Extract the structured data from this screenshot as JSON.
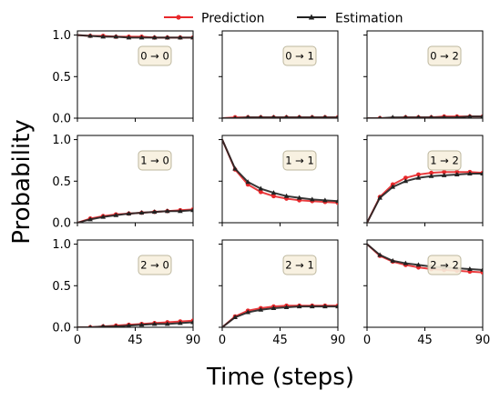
{
  "chart_data": {
    "type": "line",
    "ylabel": "Probability",
    "xlabel": "Time (steps)",
    "xlim": [
      0,
      90
    ],
    "ylim": [
      0,
      1.05
    ],
    "xticks": [
      "0",
      "45",
      "90"
    ],
    "yticks": [
      "0.0",
      "0.5",
      "1.0"
    ],
    "legend": {
      "placement": "top-center",
      "entries": [
        "Prediction",
        "Estimation"
      ]
    },
    "colors": {
      "prediction": "#e8282b",
      "estimation": "#222222"
    },
    "x": [
      0,
      10,
      20,
      30,
      40,
      50,
      60,
      70,
      80,
      90
    ],
    "panels": [
      {
        "label": "0 → 0",
        "prediction": [
          1.0,
          0.99,
          0.99,
          0.98,
          0.98,
          0.98,
          0.97,
          0.97,
          0.97,
          0.97
        ],
        "estimation": [
          1.0,
          0.99,
          0.98,
          0.98,
          0.97,
          0.97,
          0.97,
          0.97,
          0.97,
          0.97
        ]
      },
      {
        "label": "0 → 1",
        "prediction": [
          0.0,
          0.01,
          0.01,
          0.01,
          0.01,
          0.01,
          0.01,
          0.01,
          0.01,
          0.01
        ],
        "estimation": [
          0.0,
          0.0,
          0.01,
          0.01,
          0.01,
          0.01,
          0.01,
          0.01,
          0.01,
          0.01
        ]
      },
      {
        "label": "0 → 2",
        "prediction": [
          0.0,
          0.0,
          0.0,
          0.01,
          0.01,
          0.01,
          0.02,
          0.02,
          0.02,
          0.02
        ],
        "estimation": [
          0.0,
          0.0,
          0.01,
          0.01,
          0.01,
          0.01,
          0.01,
          0.01,
          0.02,
          0.02
        ]
      },
      {
        "label": "1 → 0",
        "prediction": [
          0.0,
          0.05,
          0.08,
          0.1,
          0.11,
          0.12,
          0.13,
          0.14,
          0.15,
          0.16
        ],
        "estimation": [
          0.0,
          0.04,
          0.07,
          0.09,
          0.11,
          0.12,
          0.13,
          0.14,
          0.14,
          0.15
        ]
      },
      {
        "label": "1 → 1",
        "prediction": [
          1.0,
          0.64,
          0.46,
          0.37,
          0.32,
          0.29,
          0.27,
          0.26,
          0.25,
          0.24
        ],
        "estimation": [
          1.0,
          0.65,
          0.49,
          0.41,
          0.36,
          0.32,
          0.3,
          0.28,
          0.27,
          0.26
        ]
      },
      {
        "label": "1 → 2",
        "prediction": [
          0.0,
          0.31,
          0.46,
          0.54,
          0.58,
          0.6,
          0.61,
          0.61,
          0.61,
          0.6
        ],
        "estimation": [
          0.0,
          0.3,
          0.43,
          0.5,
          0.54,
          0.56,
          0.57,
          0.58,
          0.59,
          0.59
        ]
      },
      {
        "label": "2 → 0",
        "prediction": [
          0.0,
          0.0,
          0.01,
          0.02,
          0.03,
          0.04,
          0.05,
          0.06,
          0.07,
          0.08
        ],
        "estimation": [
          0.0,
          0.0,
          0.01,
          0.01,
          0.02,
          0.03,
          0.04,
          0.04,
          0.05,
          0.06
        ]
      },
      {
        "label": "2 → 1",
        "prediction": [
          0.0,
          0.13,
          0.2,
          0.23,
          0.25,
          0.26,
          0.26,
          0.26,
          0.26,
          0.26
        ],
        "estimation": [
          0.0,
          0.12,
          0.18,
          0.21,
          0.23,
          0.24,
          0.25,
          0.25,
          0.25,
          0.25
        ]
      },
      {
        "label": "2 → 2",
        "prediction": [
          1.0,
          0.86,
          0.79,
          0.75,
          0.72,
          0.7,
          0.69,
          0.68,
          0.67,
          0.66
        ],
        "estimation": [
          1.0,
          0.87,
          0.8,
          0.77,
          0.75,
          0.73,
          0.72,
          0.71,
          0.7,
          0.69
        ]
      }
    ]
  }
}
